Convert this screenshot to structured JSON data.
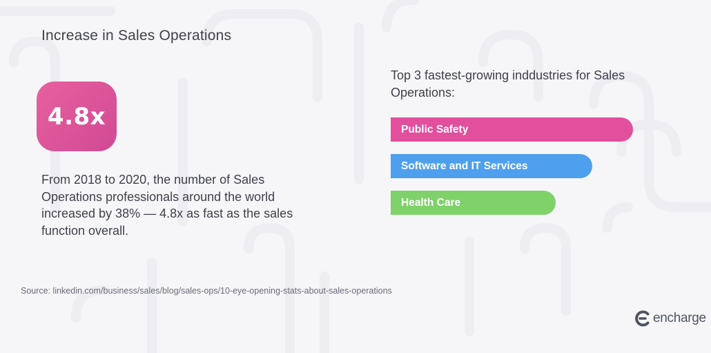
{
  "title": "Increase in Sales Operations",
  "stat": {
    "value": "4.8x"
  },
  "description": "From 2018 to 2020, the number of Sales Operations professionals around the world increased by 38% — 4.8x as fast as the sales function overall.",
  "chart_data": {
    "type": "bar",
    "orientation": "horizontal",
    "title": "Top 3 fastest-growing inddustries for Sales Operations:",
    "categories": [
      "Public Safety",
      "Software and IT Services",
      "Health Care"
    ],
    "values": [
      1,
      0.833,
      0.68
    ],
    "colors": [
      "#e24f9c",
      "#4ea0ee",
      "#7fd16a"
    ],
    "grid": false,
    "legend": "none"
  },
  "source": "Source: linkedin.com/business/sales/blog/sales-ops/10-eye-opening-stats-about-sales-operations",
  "brand": {
    "name": "encharge",
    "icon": "encharge-logo-icon"
  }
}
